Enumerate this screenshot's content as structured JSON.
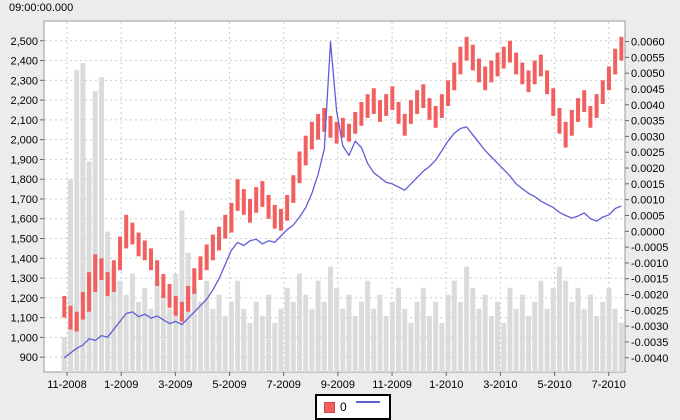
{
  "window": {
    "background": "#ececec"
  },
  "chart": {
    "title": "09:00:00.000",
    "colors": {
      "price_bars": "#f25f5f",
      "signal_line": "#5e5ed8",
      "volume_bars": "#dbdbdb",
      "grid": "#cccccc",
      "plot_border": "#9a9a9a",
      "plot_background": "#ffffff",
      "tick": "#666666",
      "text": "#000000",
      "outer_background": "#ececec"
    }
  },
  "legend": {
    "items": [
      {
        "label": "0",
        "swatch": "red-square"
      },
      {
        "label": "",
        "swatch": "blue-line"
      }
    ]
  },
  "chart_data": {
    "type": "line",
    "title": "09:00:00.000",
    "subtitle": "",
    "grid": true,
    "legend_position": "bottom",
    "x_unit": "months since 11-2008 (weekly samples)",
    "x_range": [
      -0.85,
      20.6
    ],
    "x_start": -0.1,
    "x_step": 0.2285,
    "x_tick_positions": [
      0,
      2,
      4,
      6,
      8,
      10,
      12,
      14,
      16,
      18,
      20
    ],
    "x_tick_labels": [
      "11-2008",
      "1-2009",
      "3-2009",
      "5-2009",
      "7-2009",
      "9-2009",
      "11-2009",
      "1-2010",
      "3-2010",
      "5-2010",
      "7-2010"
    ],
    "left_axis": {
      "label": "",
      "range": [
        825,
        2600
      ],
      "ticks": [
        900,
        1000,
        1100,
        1200,
        1300,
        1400,
        1500,
        1600,
        1700,
        1800,
        1900,
        2000,
        2100,
        2200,
        2300,
        2400,
        2500
      ]
    },
    "right_axis": {
      "label": "",
      "range": [
        -0.00445,
        0.00665
      ],
      "ticks": [
        0.006,
        0.0055,
        0.005,
        0.0045,
        0.004,
        0.0035,
        0.003,
        0.0025,
        0.002,
        0.0015,
        0.001,
        0.0005,
        0.0,
        -0.0005,
        -0.001,
        -0.0015,
        -0.002,
        -0.0025,
        -0.003,
        -0.0035,
        -0.004
      ]
    },
    "series": [
      {
        "name": "0",
        "type": "hilo-bar",
        "axis": "left",
        "color": "#f25f5f",
        "low": [
          1100,
          1040,
          1030,
          1090,
          1130,
          1230,
          1290,
          1210,
          1230,
          1340,
          1450,
          1470,
          1410,
          1390,
          1340,
          1260,
          1200,
          1150,
          1110,
          1080,
          1130,
          1220,
          1290,
          1340,
          1390,
          1440,
          1500,
          1530,
          1640,
          1620,
          1580,
          1630,
          1660,
          1600,
          1550,
          1540,
          1590,
          1680,
          1780,
          1870,
          1950,
          2000,
          2040,
          2010,
          1980,
          2010,
          1990,
          2030,
          2070,
          2110,
          2130,
          2090,
          2120,
          2150,
          2080,
          2020,
          2080,
          2130,
          2160,
          2100,
          2060,
          2110,
          2170,
          2250,
          2330,
          2400,
          2350,
          2290,
          2250,
          2290,
          2320,
          2360,
          2390,
          2330,
          2280,
          2240,
          2280,
          2320,
          2230,
          2120,
          2030,
          1960,
          2020,
          2090,
          2140,
          2060,
          2110,
          2180,
          2250,
          2330,
          2400
        ],
        "high": [
          1210,
          1160,
          1130,
          1230,
          1330,
          1420,
          1400,
          1330,
          1390,
          1510,
          1620,
          1580,
          1530,
          1490,
          1450,
          1390,
          1320,
          1270,
          1210,
          1180,
          1260,
          1350,
          1410,
          1470,
          1520,
          1560,
          1620,
          1680,
          1800,
          1750,
          1700,
          1760,
          1790,
          1720,
          1670,
          1650,
          1720,
          1820,
          1940,
          2020,
          2090,
          2130,
          2160,
          2120,
          2090,
          2110,
          2080,
          2140,
          2190,
          2230,
          2260,
          2200,
          2230,
          2270,
          2190,
          2130,
          2200,
          2250,
          2280,
          2210,
          2170,
          2230,
          2300,
          2390,
          2470,
          2520,
          2480,
          2410,
          2370,
          2400,
          2440,
          2470,
          2500,
          2440,
          2390,
          2350,
          2400,
          2430,
          2350,
          2260,
          2160,
          2090,
          2150,
          2210,
          2250,
          2170,
          2230,
          2300,
          2370,
          2460,
          2520
        ]
      },
      {
        "name": "",
        "type": "line",
        "axis": "right",
        "color": "#5e5ed8",
        "values": [
          -0.004,
          -0.00385,
          -0.0037,
          -0.0036,
          -0.0034,
          -0.00345,
          -0.0033,
          -0.00335,
          -0.0031,
          -0.00285,
          -0.0026,
          -0.00255,
          -0.0027,
          -0.00262,
          -0.00275,
          -0.00268,
          -0.0028,
          -0.00292,
          -0.00285,
          -0.00295,
          -0.00275,
          -0.00255,
          -0.00235,
          -0.00215,
          -0.00185,
          -0.0015,
          -0.00105,
          -0.0006,
          -0.00035,
          -0.00045,
          -0.0003,
          -0.00025,
          -0.0004,
          -0.0003,
          -0.00035,
          -0.00015,
          5e-05,
          0.0002,
          0.00045,
          0.00075,
          0.0012,
          0.0018,
          0.0026,
          0.006,
          0.0038,
          0.0027,
          0.0024,
          0.00285,
          0.00265,
          0.00215,
          0.00185,
          0.0017,
          0.00155,
          0.0015,
          0.0014,
          0.0013,
          0.0015,
          0.0017,
          0.0019,
          0.00205,
          0.00225,
          0.00255,
          0.00285,
          0.0031,
          0.00325,
          0.0033,
          0.00305,
          0.0028,
          0.00255,
          0.00235,
          0.00215,
          0.00195,
          0.00175,
          0.0015,
          0.00135,
          0.0012,
          0.0011,
          0.00095,
          0.00085,
          0.00075,
          0.0006,
          0.0005,
          0.00042,
          0.00048,
          0.00058,
          0.0004,
          0.00032,
          0.00045,
          0.00052,
          0.00072,
          0.0008
        ]
      },
      {
        "name": "volume",
        "type": "bar",
        "axis": "relative-bottom",
        "color": "#dbdbdb",
        "values": [
          0.1,
          0.55,
          0.86,
          0.88,
          0.6,
          0.8,
          0.84,
          0.4,
          0.3,
          0.26,
          0.22,
          0.28,
          0.2,
          0.24,
          0.18,
          0.26,
          0.22,
          0.18,
          0.28,
          0.46,
          0.34,
          0.24,
          0.2,
          0.26,
          0.18,
          0.22,
          0.16,
          0.2,
          0.26,
          0.18,
          0.14,
          0.2,
          0.16,
          0.22,
          0.14,
          0.18,
          0.24,
          0.2,
          0.28,
          0.22,
          0.18,
          0.26,
          0.2,
          0.3,
          0.24,
          0.18,
          0.22,
          0.16,
          0.2,
          0.26,
          0.18,
          0.22,
          0.16,
          0.2,
          0.24,
          0.18,
          0.14,
          0.2,
          0.24,
          0.16,
          0.2,
          0.14,
          0.22,
          0.26,
          0.2,
          0.3,
          0.24,
          0.18,
          0.22,
          0.16,
          0.2,
          0.14,
          0.24,
          0.18,
          0.22,
          0.16,
          0.2,
          0.26,
          0.18,
          0.24,
          0.3,
          0.26,
          0.2,
          0.24,
          0.18,
          0.22,
          0.16,
          0.2,
          0.24,
          0.18,
          0.14
        ]
      }
    ]
  }
}
